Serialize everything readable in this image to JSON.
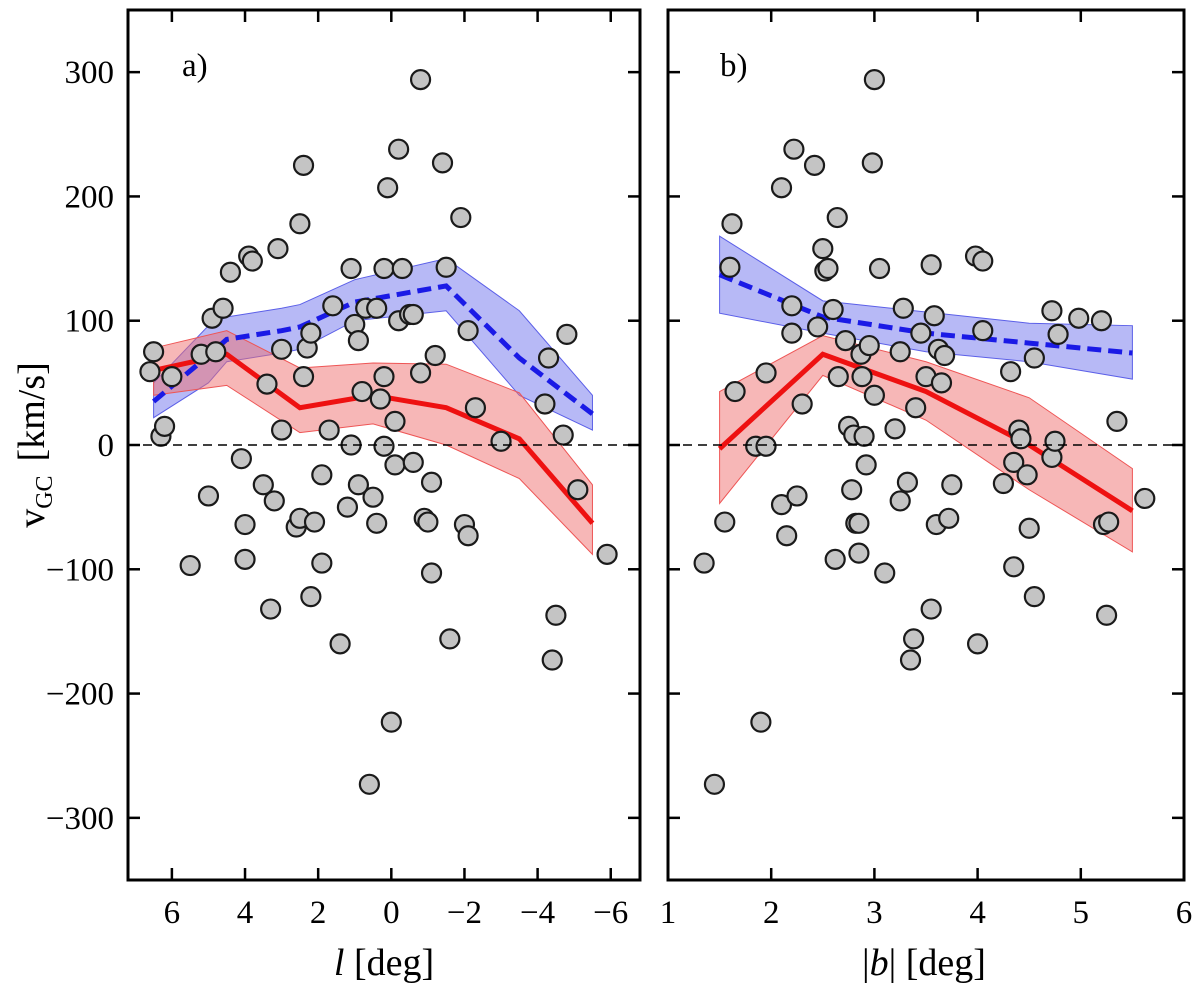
{
  "chart_data": [
    {
      "type": "scatter",
      "panel_label": "a)",
      "xlabel_italic": "l",
      "xlabel_rest": " [deg]",
      "ylabel_main": "v",
      "ylabel_sub": "GC",
      "ylabel_units": "[km/s]",
      "xlim": [
        7.2,
        -6.8
      ],
      "ylim": [
        -350,
        350
      ],
      "x_ticks": [
        6,
        4,
        2,
        0,
        -2,
        -4,
        -6
      ],
      "x_tick_labels": [
        "6",
        "4",
        "2",
        "0",
        "−2",
        "−4",
        "−6"
      ],
      "y_ticks": [
        -300,
        -200,
        -100,
        0,
        100,
        200,
        300
      ],
      "y_tick_labels": [
        "−300",
        "−200",
        "−100",
        "0",
        "100",
        "200",
        "300"
      ],
      "reference_line_y": 0,
      "points": [
        [
          6.5,
          75
        ],
        [
          6.6,
          59
        ],
        [
          6.3,
          7
        ],
        [
          6.2,
          15
        ],
        [
          6.0,
          55
        ],
        [
          5.5,
          -97
        ],
        [
          5.2,
          73
        ],
        [
          4.9,
          102
        ],
        [
          5.0,
          -41
        ],
        [
          4.8,
          75
        ],
        [
          4.6,
          110
        ],
        [
          4.4,
          139
        ],
        [
          4.1,
          -11
        ],
        [
          4.0,
          -64
        ],
        [
          4.0,
          -92
        ],
        [
          3.9,
          152
        ],
        [
          3.8,
          148
        ],
        [
          3.5,
          -32
        ],
        [
          3.4,
          49
        ],
        [
          3.3,
          -132
        ],
        [
          3.2,
          -45
        ],
        [
          3.1,
          158
        ],
        [
          3.0,
          77
        ],
        [
          3.0,
          12
        ],
        [
          2.6,
          -66
        ],
        [
          2.5,
          178
        ],
        [
          2.5,
          -59
        ],
        [
          2.4,
          225
        ],
        [
          2.4,
          55
        ],
        [
          2.3,
          78
        ],
        [
          2.2,
          90
        ],
        [
          2.2,
          -122
        ],
        [
          2.1,
          -62
        ],
        [
          1.9,
          -24
        ],
        [
          1.9,
          -95
        ],
        [
          1.7,
          12
        ],
        [
          1.6,
          112
        ],
        [
          1.4,
          -160
        ],
        [
          1.2,
          -50
        ],
        [
          1.1,
          142
        ],
        [
          1.1,
          0
        ],
        [
          1.0,
          97
        ],
        [
          0.9,
          84
        ],
        [
          0.9,
          -32
        ],
        [
          0.8,
          43
        ],
        [
          0.7,
          110
        ],
        [
          0.6,
          -273
        ],
        [
          0.5,
          -42
        ],
        [
          0.4,
          -63
        ],
        [
          0.4,
          110
        ],
        [
          0.3,
          37
        ],
        [
          0.2,
          55
        ],
        [
          0.2,
          142
        ],
        [
          0.2,
          -1
        ],
        [
          0.1,
          207
        ],
        [
          0.0,
          -223
        ],
        [
          -0.1,
          19
        ],
        [
          -0.1,
          -16
        ],
        [
          -0.2,
          238
        ],
        [
          -0.2,
          100
        ],
        [
          -0.3,
          142
        ],
        [
          -0.5,
          105
        ],
        [
          -0.6,
          -14
        ],
        [
          -0.6,
          105
        ],
        [
          -0.8,
          58
        ],
        [
          -0.8,
          294
        ],
        [
          -0.9,
          -59
        ],
        [
          -1.0,
          -62
        ],
        [
          -1.1,
          -103
        ],
        [
          -1.1,
          -30
        ],
        [
          -1.2,
          72
        ],
        [
          -1.4,
          227
        ],
        [
          -1.5,
          143
        ],
        [
          -1.6,
          -156
        ],
        [
          -1.9,
          183
        ],
        [
          -2.0,
          -64
        ],
        [
          -2.1,
          92
        ],
        [
          -2.1,
          -73
        ],
        [
          -2.3,
          30
        ],
        [
          -3.0,
          3
        ],
        [
          -4.2,
          33
        ],
        [
          -4.3,
          70
        ],
        [
          -4.4,
          -173
        ],
        [
          -4.5,
          -137
        ],
        [
          -4.7,
          8
        ],
        [
          -4.8,
          89
        ],
        [
          -5.1,
          -36
        ],
        [
          -5.9,
          -88
        ]
      ],
      "series": [
        {
          "name": "blue dashed",
          "style": "dashed",
          "color": "#1a1ae6",
          "band_color": "#6f73ee",
          "x": [
            6.5,
            5.0,
            4.5,
            3.0,
            2.5,
            1.0,
            -1.5,
            -3.5,
            -5.5
          ],
          "values": [
            35,
            72,
            85,
            92,
            95,
            115,
            128,
            70,
            25
          ],
          "upper": [
            50,
            96,
            103,
            110,
            113,
            133,
            150,
            108,
            40
          ],
          "lower": [
            22,
            50,
            67,
            74,
            77,
            100,
            108,
            40,
            12
          ]
        },
        {
          "name": "red solid",
          "style": "solid",
          "color": "#ee1111",
          "band_color": "#f07070",
          "x": [
            6.5,
            4.5,
            2.5,
            0.5,
            -1.5,
            -3.5,
            -5.5
          ],
          "values": [
            60,
            73,
            30,
            40,
            30,
            5,
            -63
          ],
          "upper": [
            78,
            92,
            62,
            66,
            65,
            42,
            -32
          ],
          "lower": [
            40,
            48,
            10,
            17,
            0,
            -27,
            -88
          ]
        }
      ]
    },
    {
      "type": "scatter",
      "panel_label": "b)",
      "xlabel_italic": "b",
      "xlabel_rest": "| [deg]",
      "xlabel_prefix": "|",
      "xlim": [
        1.0,
        6.0
      ],
      "ylim": [
        -350,
        350
      ],
      "x_ticks": [
        1,
        2,
        3,
        4,
        5,
        6
      ],
      "x_tick_labels": [
        "1",
        "2",
        "3",
        "4",
        "5",
        "6"
      ],
      "y_ticks": [
        -300,
        -200,
        -100,
        0,
        100,
        200,
        300
      ],
      "reference_line_y": 0,
      "points": [
        [
          1.35,
          -95
        ],
        [
          1.45,
          -273
        ],
        [
          1.55,
          -62
        ],
        [
          1.6,
          143
        ],
        [
          1.62,
          178
        ],
        [
          1.65,
          43
        ],
        [
          1.85,
          -1
        ],
        [
          1.9,
          -223
        ],
        [
          1.95,
          58
        ],
        [
          1.95,
          -1
        ],
        [
          2.1,
          207
        ],
        [
          2.1,
          -48
        ],
        [
          2.15,
          -73
        ],
        [
          2.2,
          90
        ],
        [
          2.2,
          112
        ],
        [
          2.22,
          238
        ],
        [
          2.25,
          -41
        ],
        [
          2.3,
          33
        ],
        [
          2.42,
          225
        ],
        [
          2.45,
          95
        ],
        [
          2.5,
          158
        ],
        [
          2.52,
          140
        ],
        [
          2.55,
          142
        ],
        [
          2.6,
          109
        ],
        [
          2.62,
          -92
        ],
        [
          2.64,
          183
        ],
        [
          2.65,
          55
        ],
        [
          2.72,
          84
        ],
        [
          2.75,
          15
        ],
        [
          2.78,
          -36
        ],
        [
          2.8,
          8
        ],
        [
          2.82,
          -63
        ],
        [
          2.85,
          -87
        ],
        [
          2.85,
          -63
        ],
        [
          2.87,
          73
        ],
        [
          2.88,
          55
        ],
        [
          2.9,
          7
        ],
        [
          2.92,
          -16
        ],
        [
          2.95,
          80
        ],
        [
          2.98,
          227
        ],
        [
          3.0,
          294
        ],
        [
          3.0,
          40
        ],
        [
          3.05,
          142
        ],
        [
          3.1,
          -103
        ],
        [
          3.2,
          13
        ],
        [
          3.25,
          -45
        ],
        [
          3.25,
          75
        ],
        [
          3.28,
          110
        ],
        [
          3.32,
          -30
        ],
        [
          3.35,
          -173
        ],
        [
          3.38,
          -156
        ],
        [
          3.4,
          30
        ],
        [
          3.45,
          90
        ],
        [
          3.5,
          55
        ],
        [
          3.55,
          145
        ],
        [
          3.55,
          -132
        ],
        [
          3.58,
          104
        ],
        [
          3.6,
          -64
        ],
        [
          3.62,
          77
        ],
        [
          3.65,
          50
        ],
        [
          3.68,
          72
        ],
        [
          3.72,
          -59
        ],
        [
          3.75,
          -32
        ],
        [
          3.98,
          152
        ],
        [
          4.0,
          -160
        ],
        [
          4.05,
          148
        ],
        [
          4.05,
          92
        ],
        [
          4.25,
          -31
        ],
        [
          4.32,
          59
        ],
        [
          4.35,
          -14
        ],
        [
          4.35,
          -98
        ],
        [
          4.4,
          12
        ],
        [
          4.42,
          5
        ],
        [
          4.48,
          -24
        ],
        [
          4.5,
          -67
        ],
        [
          4.55,
          -122
        ],
        [
          4.55,
          70
        ],
        [
          4.72,
          108
        ],
        [
          4.72,
          -10
        ],
        [
          4.75,
          3
        ],
        [
          4.78,
          89
        ],
        [
          4.98,
          102
        ],
        [
          5.2,
          100
        ],
        [
          5.22,
          -64
        ],
        [
          5.25,
          -137
        ],
        [
          5.27,
          -62
        ],
        [
          5.35,
          19
        ],
        [
          5.62,
          -43
        ]
      ],
      "series": [
        {
          "name": "blue dashed",
          "style": "dashed",
          "color": "#1a1ae6",
          "band_color": "#6f73ee",
          "x": [
            1.5,
            2.5,
            3.5,
            4.5,
            5.5
          ],
          "values": [
            137,
            103,
            90,
            82,
            74
          ],
          "upper": [
            168,
            116,
            107,
            98,
            96
          ],
          "lower": [
            106,
            90,
            75,
            67,
            53
          ]
        },
        {
          "name": "red solid",
          "style": "solid",
          "color": "#ee1111",
          "band_color": "#f07070",
          "x": [
            1.5,
            2.5,
            3.5,
            4.5,
            5.5
          ],
          "values": [
            -3,
            73,
            43,
            0,
            -53
          ],
          "upper": [
            43,
            88,
            67,
            38,
            -19
          ],
          "lower": [
            -47,
            56,
            20,
            -36,
            -86
          ]
        }
      ]
    }
  ]
}
